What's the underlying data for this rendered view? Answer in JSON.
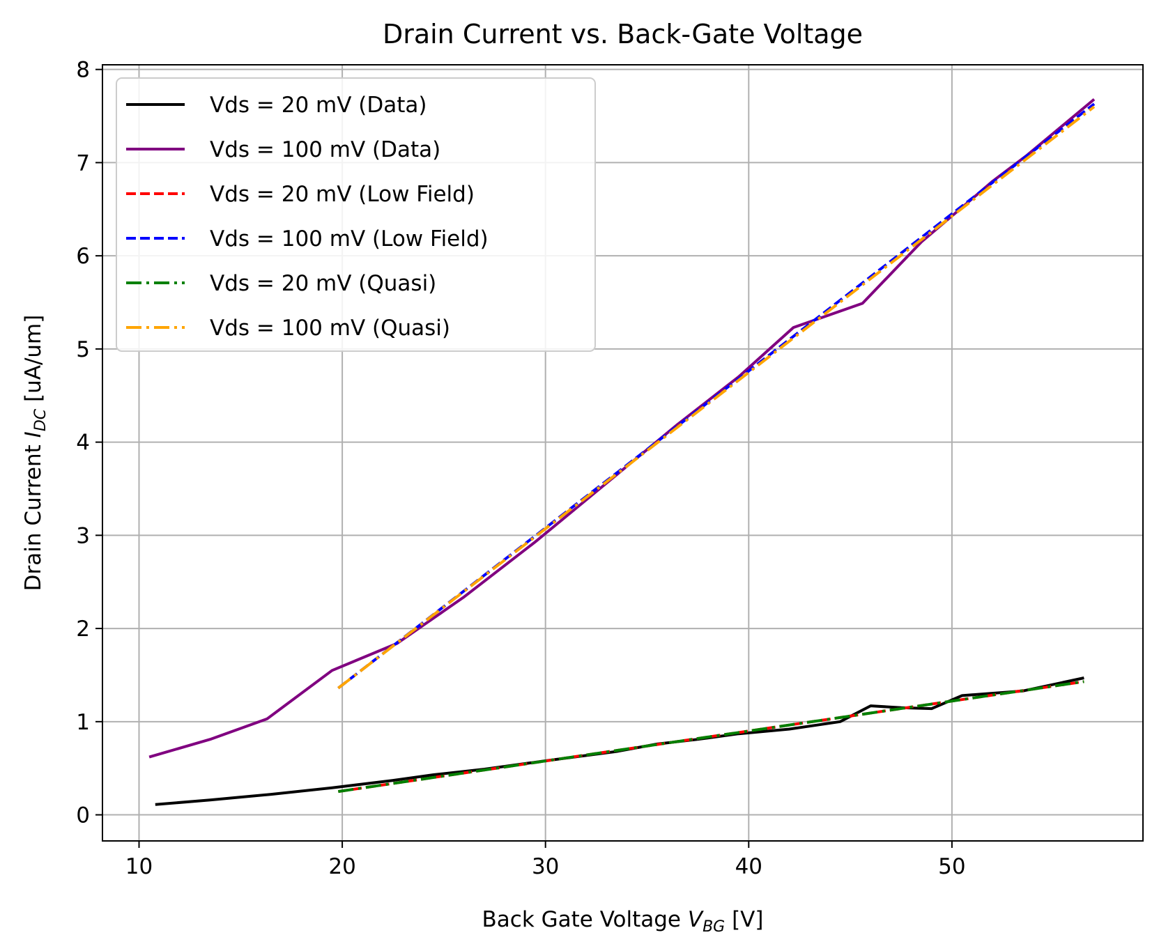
{
  "chart_data": {
    "type": "line",
    "title": "Drain Current vs. Back-Gate Voltage",
    "xlabel": {
      "main": "Back Gate Voltage ",
      "sym": "V",
      "sub": "BG",
      "unit": " [V]"
    },
    "ylabel": {
      "main": "Drain Current ",
      "sym": "I",
      "sub": "DC",
      "unit": " [uA/um]"
    },
    "xlim": [
      8.2,
      59.4
    ],
    "ylim": [
      -0.28,
      8.05
    ],
    "xticks": [
      10,
      20,
      30,
      40,
      50
    ],
    "yticks": [
      0,
      1,
      2,
      3,
      4,
      5,
      6,
      7,
      8
    ],
    "grid": true,
    "legend_position": "upper-left",
    "series": [
      {
        "name": "Vds = 20 mV (Data)",
        "color": "#000000",
        "style": "solid",
        "x": [
          10.8,
          13.5,
          16.5,
          19.5,
          22.5,
          24.5,
          27.0,
          30.0,
          33.5,
          35.5,
          37.5,
          39.5,
          42.0,
          44.5,
          46.0,
          47.5,
          49.0,
          50.5,
          53.5,
          56.5
        ],
        "y": [
          0.11,
          0.16,
          0.22,
          0.29,
          0.37,
          0.43,
          0.49,
          0.58,
          0.68,
          0.76,
          0.81,
          0.87,
          0.92,
          1.0,
          1.17,
          1.15,
          1.14,
          1.28,
          1.33,
          1.47
        ]
      },
      {
        "name": "Vds = 100 mV (Data)",
        "color": "#800080",
        "style": "solid",
        "x": [
          10.5,
          13.5,
          16.3,
          19.5,
          22.7,
          26.0,
          29.5,
          33.0,
          36.5,
          39.5,
          42.2,
          45.6,
          48.5,
          50.5,
          52.0,
          53.7,
          57.0
        ],
        "y": [
          0.62,
          0.81,
          1.03,
          1.55,
          1.84,
          2.34,
          2.93,
          3.56,
          4.19,
          4.7,
          5.23,
          5.49,
          6.15,
          6.52,
          6.8,
          7.08,
          7.68
        ]
      },
      {
        "name": "Vds = 20 mV (Low Field)",
        "color": "#ff0000",
        "style": "dashed",
        "x": [
          19.8,
          56.5
        ],
        "y": [
          0.25,
          1.43
        ]
      },
      {
        "name": "Vds = 100 mV (Low Field)",
        "color": "#0000ff",
        "style": "dashed",
        "x": [
          19.8,
          57.0
        ],
        "y": [
          1.36,
          7.63
        ]
      },
      {
        "name": "Vds = 20 mV (Quasi)",
        "color": "#008000",
        "style": "dashdot",
        "x": [
          19.8,
          56.5
        ],
        "y": [
          0.25,
          1.43
        ]
      },
      {
        "name": "Vds = 100 mV (Quasi)",
        "color": "#ffa500",
        "style": "dashdot",
        "x": [
          19.8,
          57.0
        ],
        "y": [
          1.36,
          7.6
        ]
      }
    ]
  }
}
